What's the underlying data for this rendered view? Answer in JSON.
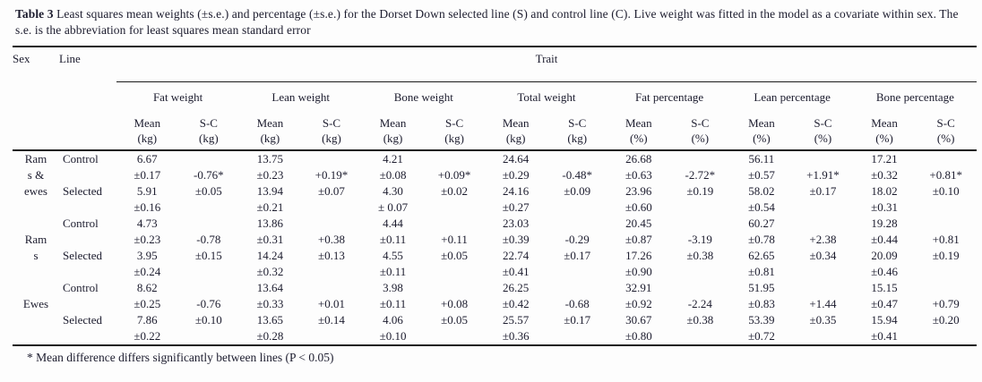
{
  "caption": {
    "label": "Table 3",
    "text": " Least squares mean weights (±s.e.) and percentage (±s.e.) for the Dorset Down selected line (S) and control line (C). Live weight was fitted in the model as a covariate within sex. The s.e. is the abbreviation for least squares mean standard error"
  },
  "table": {
    "col_sex": "Sex",
    "col_line": "Line",
    "col_trait": "Trait",
    "stat_labels": {
      "mean": "Mean",
      "sc": "S-C"
    },
    "groups": [
      {
        "label": "Fat weight",
        "unit": "(kg)"
      },
      {
        "label": "Lean weight",
        "unit": "(kg)"
      },
      {
        "label": "Bone weight",
        "unit": "(kg)"
      },
      {
        "label": "Total weight",
        "unit": "(kg)"
      },
      {
        "label": "Fat percentage",
        "unit": "(%)"
      },
      {
        "label": "Lean percentage",
        "unit": "(%)"
      },
      {
        "label": "Bone percentage",
        "unit": "(%)"
      }
    ],
    "sections": [
      {
        "sex": "Rams & ewes",
        "rows": [
          [
            "Ram",
            "Control",
            "6.67",
            "",
            "13.75",
            "",
            "4.21",
            "",
            "24.64",
            "",
            "26.68",
            "",
            "56.11",
            "",
            "17.21",
            ""
          ],
          [
            "s &",
            "",
            "±0.17",
            "-0.76*",
            "±0.23",
            "+0.19*",
            "±0.08",
            "+0.09*",
            "±0.29",
            "-0.48*",
            "±0.63",
            "-2.72*",
            "±0.57",
            "+1.91*",
            "±0.32",
            "+0.81*"
          ],
          [
            "ewes",
            "Selected",
            "5.91",
            "±0.05",
            "13.94",
            "±0.07",
            "4.30",
            "±0.02",
            "24.16",
            "±0.09",
            "23.96",
            "±0.19",
            "58.02",
            "±0.17",
            "18.02",
            "±0.10"
          ],
          [
            "",
            "",
            "±0.16",
            "",
            "±0.21",
            "",
            "± 0.07",
            "",
            "±0.27",
            "",
            "±0.60",
            "",
            "±0.54",
            "",
            "±0.31",
            ""
          ]
        ]
      },
      {
        "sex": "Rams",
        "rows": [
          [
            "",
            "Control",
            "4.73",
            "",
            "13.86",
            "",
            "4.44",
            "",
            "23.03",
            "",
            "20.45",
            "",
            "60.27",
            "",
            "19.28",
            ""
          ],
          [
            "Ram",
            "",
            "±0.23",
            "-0.78",
            "±0.31",
            "+0.38",
            "±0.11",
            "+0.11",
            "±0.39",
            "-0.29",
            "±0.87",
            "-3.19",
            "±0.78",
            "+2.38",
            "±0.44",
            "+0.81"
          ],
          [
            "s",
            "Selected",
            "3.95",
            "±0.15",
            "14.24",
            "±0.13",
            "4.55",
            "±0.05",
            "22.74",
            "±0.17",
            "17.26",
            "±0.38",
            "62.65",
            "±0.34",
            "20.09",
            "±0.19"
          ],
          [
            "",
            "",
            "±0.24",
            "",
            "±0.32",
            "",
            "±0.11",
            "",
            "±0.41",
            "",
            "±0.90",
            "",
            "±0.81",
            "",
            "±0.46",
            ""
          ]
        ]
      },
      {
        "sex": "Ewes",
        "rows": [
          [
            "",
            "Control",
            "8.62",
            "",
            "13.64",
            "",
            "3.98",
            "",
            "26.25",
            "",
            "32.91",
            "",
            "51.95",
            "",
            "15.15",
            ""
          ],
          [
            "Ewes",
            "",
            "±0.25",
            "-0.76",
            "±0.33",
            "+0.01",
            "±0.11",
            "+0.08",
            "±0.42",
            "-0.68",
            "±0.92",
            "-2.24",
            "±0.83",
            "+1.44",
            "±0.47",
            "+0.79"
          ],
          [
            "",
            "Selected",
            "7.86",
            "±0.10",
            "13.65",
            "±0.14",
            "4.06",
            "±0.05",
            "25.57",
            "±0.17",
            "30.67",
            "±0.38",
            "53.39",
            "±0.35",
            "15.94",
            "±0.20"
          ],
          [
            "",
            "",
            "±0.22",
            "",
            "±0.28",
            "",
            "±0.10",
            "",
            "±0.36",
            "",
            "±0.80",
            "",
            "±0.72",
            "",
            "±0.41",
            ""
          ]
        ]
      }
    ]
  },
  "footnote": "* Mean difference differs significantly between lines (P < 0.05)"
}
